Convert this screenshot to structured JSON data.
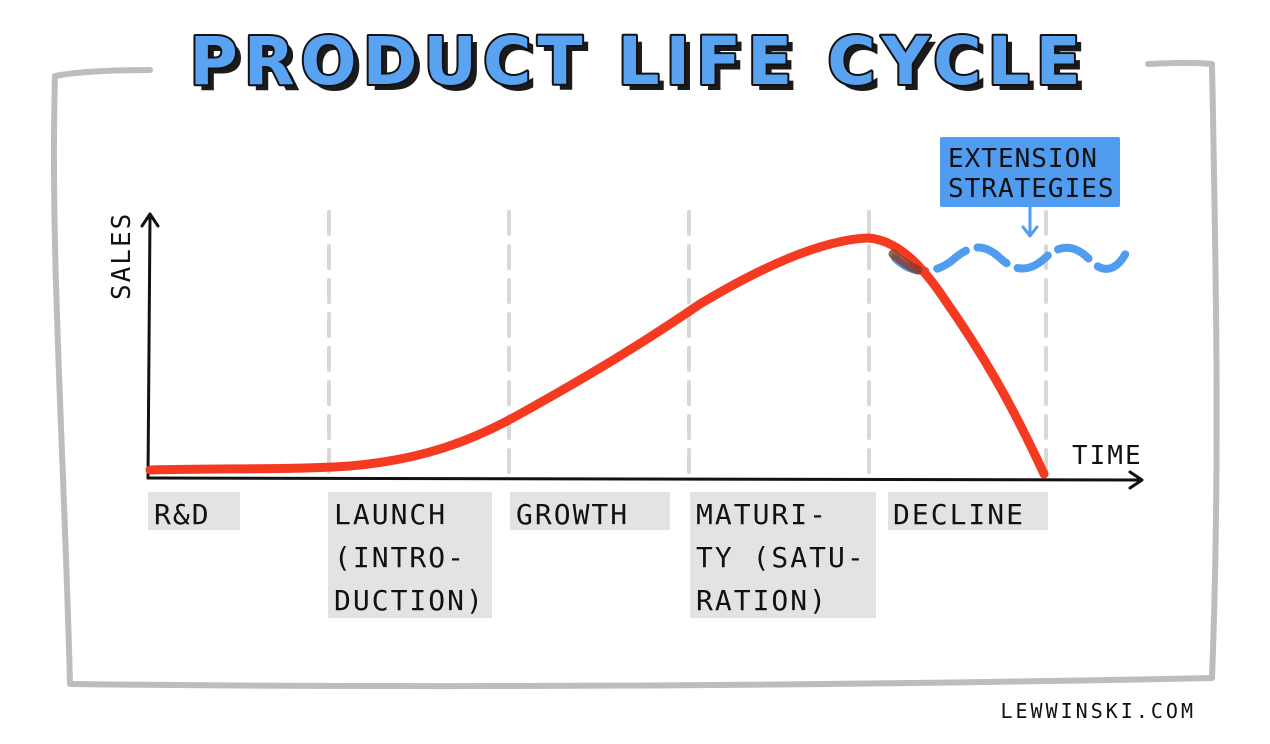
{
  "title": "PRODUCT LIFE CYCLE",
  "axes": {
    "y_label": "SALES",
    "x_label": "TIME"
  },
  "stages": [
    {
      "id": "rd",
      "lines": [
        "R&D"
      ]
    },
    {
      "id": "launch",
      "lines": [
        "LAUNCH",
        "(INTRO-",
        "DUCTION)"
      ]
    },
    {
      "id": "growth",
      "lines": [
        "GROWTH"
      ]
    },
    {
      "id": "maturity",
      "lines": [
        "MATURI-",
        "TY (SATU-",
        "RATION)"
      ]
    },
    {
      "id": "decline",
      "lines": [
        "DECLINE"
      ]
    }
  ],
  "extension": {
    "lines": [
      "EXTENSION",
      "STRATEGIES"
    ]
  },
  "credit": "LEWWINSKI.COM",
  "colors": {
    "title_fill": "#5aa3f2",
    "curve": "#f53a22",
    "extension": "#4f9cf0",
    "label_background": "#e3e3e3",
    "extension_background": "#4f9cf0",
    "frame": "#bdbdbd",
    "divider": "#d8d8d8"
  },
  "icons": {
    "y_axis_arrow": "arrow-up",
    "x_axis_arrow": "arrow-right",
    "extension_arrow": "arrow-down"
  }
}
